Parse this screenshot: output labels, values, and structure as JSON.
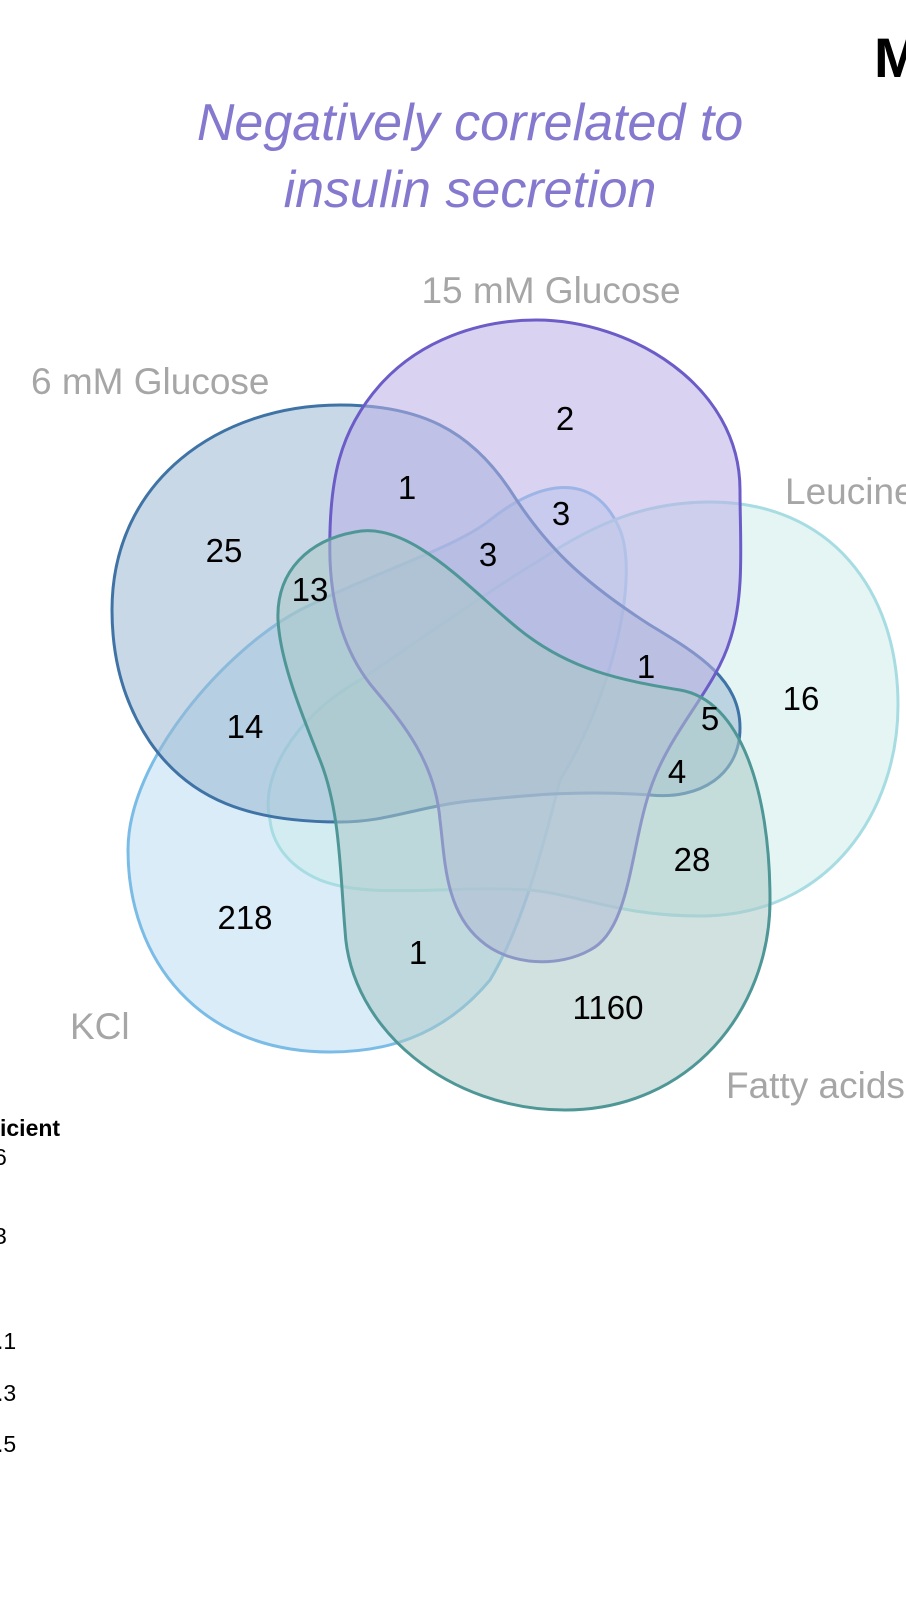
{
  "corner_label": "M",
  "title_lines": [
    "Negatively correlated to",
    "insulin secretion"
  ],
  "sets": [
    {
      "id": "glc6",
      "label": "6 mM Glucose",
      "fill": "#9bb8d2",
      "stroke": "#3f73a6"
    },
    {
      "id": "glc15",
      "label": "15 mM Glucose",
      "fill": "#b9aee6",
      "stroke": "#6b5cc8"
    },
    {
      "id": "leu",
      "label": "Leucine",
      "fill": "#cdeceb",
      "stroke": "#a7dde2"
    },
    {
      "id": "fa",
      "label": "Fatty acids",
      "fill": "#a9c9c6",
      "stroke": "#4f9797"
    },
    {
      "id": "kcl",
      "label": "KCl",
      "fill": "#bcdcf3",
      "stroke": "#7bbce6"
    }
  ],
  "region_counts": [
    {
      "sets": [
        "15 mM Glucose"
      ],
      "value": "2"
    },
    {
      "sets": [
        "6 mM Glucose",
        "15 mM Glucose"
      ],
      "value": "1"
    },
    {
      "sets": [
        "15 mM Glucose",
        "KCl"
      ],
      "value": "3"
    },
    {
      "sets": [
        "6 mM Glucose",
        "15 mM Glucose",
        "KCl"
      ],
      "value": "3"
    },
    {
      "sets": [
        "6 mM Glucose"
      ],
      "value": "25"
    },
    {
      "sets": [
        "6 mM Glucose",
        "Fatty acids"
      ],
      "value": "13"
    },
    {
      "sets": [
        "15 mM Glucose",
        "Leucine"
      ],
      "value": "1"
    },
    {
      "sets": [
        "6 mM Glucose",
        "Leucine"
      ],
      "value": "5"
    },
    {
      "sets": [
        "Leucine"
      ],
      "value": "16"
    },
    {
      "sets": [
        "6 mM Glucose",
        "KCl"
      ],
      "value": "14"
    },
    {
      "sets": [
        "6 mM Glucose",
        "Leucine",
        "Fatty acids"
      ],
      "value": "4"
    },
    {
      "sets": [
        "Leucine",
        "Fatty acids"
      ],
      "value": "28"
    },
    {
      "sets": [
        "KCl"
      ],
      "value": "218"
    },
    {
      "sets": [
        "KCl",
        "Fatty acids"
      ],
      "value": "1"
    },
    {
      "sets": [
        "Fatty acids"
      ],
      "value": "1160"
    }
  ],
  "legend": {
    "title": "icient",
    "ticks": [
      "6",
      "3",
      ".1",
      ".3",
      ".5"
    ]
  }
}
